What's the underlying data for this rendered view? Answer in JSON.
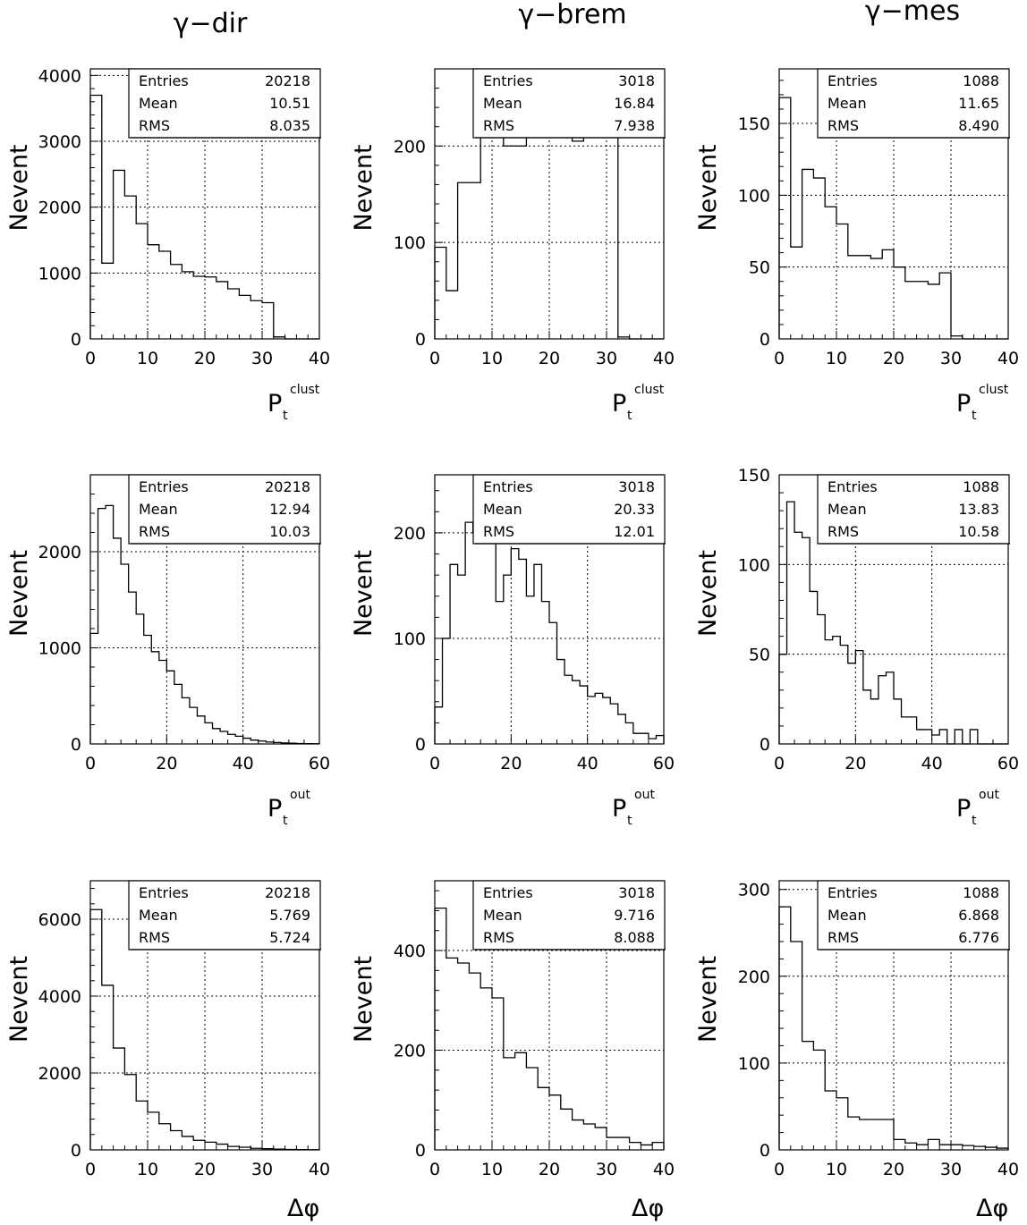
{
  "column_titles": [
    "γ−dir",
    "γ−brem",
    "γ−mes"
  ],
  "stat_labels": [
    "Entries",
    "Mean",
    "RMS"
  ],
  "chart_data": [
    {
      "type": "bar",
      "panel": "row1-col1",
      "title": "γ−dir",
      "ylabel": "Nevent",
      "xlabel_main": "P",
      "xlabel_sub": "t",
      "xlabel_sup": "clust",
      "xlim": [
        0,
        40
      ],
      "ylim": [
        0,
        4100
      ],
      "xticks": [
        0,
        10,
        20,
        30,
        40
      ],
      "yticks": [
        0,
        1000,
        2000,
        3000,
        4000
      ],
      "bin_width": 2,
      "values": [
        3700,
        1150,
        2560,
        2170,
        1750,
        1430,
        1330,
        1130,
        1020,
        950,
        940,
        870,
        760,
        660,
        580,
        550,
        30,
        0,
        0,
        0
      ],
      "stats": {
        "Entries": "20218",
        "Mean": "10.51",
        "RMS": "8.035"
      },
      "grid": true
    },
    {
      "type": "bar",
      "panel": "row1-col2",
      "title": "γ−brem",
      "ylabel": "Nevent",
      "xlabel_main": "P",
      "xlabel_sub": "t",
      "xlabel_sup": "clust",
      "xlim": [
        0,
        40
      ],
      "ylim": [
        0,
        280
      ],
      "xticks": [
        0,
        10,
        20,
        30,
        40
      ],
      "yticks": [
        0,
        100,
        200
      ],
      "bin_width": 2,
      "values": [
        95,
        50,
        162,
        162,
        250,
        240,
        200,
        200,
        248,
        232,
        215,
        245,
        205,
        235,
        255,
        255,
        2,
        0,
        0,
        0
      ],
      "stats": {
        "Entries": "3018",
        "Mean": "16.84",
        "RMS": "7.938"
      },
      "grid": true
    },
    {
      "type": "bar",
      "panel": "row1-col3",
      "title": "γ−mes",
      "ylabel": "Nevent",
      "xlabel_main": "P",
      "xlabel_sub": "t",
      "xlabel_sup": "clust",
      "xlim": [
        0,
        40
      ],
      "ylim": [
        0,
        188
      ],
      "xticks": [
        0,
        10,
        20,
        30,
        40
      ],
      "yticks": [
        0,
        50,
        100,
        150
      ],
      "bin_width": 2,
      "values": [
        168,
        64,
        118,
        112,
        92,
        80,
        58,
        58,
        56,
        62,
        50,
        40,
        40,
        38,
        46,
        2,
        0,
        0,
        0,
        0
      ],
      "stats": {
        "Entries": "1088",
        "Mean": "11.65",
        "RMS": "8.490"
      },
      "grid": true
    },
    {
      "type": "bar",
      "panel": "row2-col1",
      "title": "γ−dir",
      "ylabel": "Nevent",
      "xlabel_main": "P",
      "xlabel_sub": "t",
      "xlabel_sup": "out",
      "xlim": [
        0,
        60
      ],
      "ylim": [
        0,
        2800
      ],
      "xticks": [
        0,
        20,
        40,
        60
      ],
      "yticks": [
        0,
        1000,
        2000
      ],
      "bin_width": 2,
      "values": [
        1150,
        2450,
        2480,
        2140,
        1870,
        1580,
        1350,
        1130,
        960,
        870,
        760,
        620,
        480,
        380,
        290,
        220,
        160,
        130,
        100,
        80,
        60,
        40,
        30,
        20,
        15,
        10,
        8,
        5,
        3,
        2
      ],
      "stats": {
        "Entries": "20218",
        "Mean": "12.94",
        "RMS": "10.03"
      },
      "grid": true
    },
    {
      "type": "bar",
      "panel": "row2-col2",
      "title": "γ−brem",
      "ylabel": "Nevent",
      "xlabel_main": "P",
      "xlabel_sub": "t",
      "xlabel_sup": "out",
      "xlim": [
        0,
        60
      ],
      "ylim": [
        0,
        255
      ],
      "xticks": [
        0,
        20,
        40,
        60
      ],
      "yticks": [
        0,
        100,
        200
      ],
      "bin_width": 2,
      "values": [
        35,
        100,
        170,
        160,
        210,
        200,
        230,
        195,
        135,
        160,
        185,
        175,
        140,
        170,
        135,
        115,
        80,
        65,
        60,
        55,
        45,
        48,
        44,
        38,
        28,
        20,
        10,
        10,
        5,
        8
      ],
      "stats": {
        "Entries": "3018",
        "Mean": "20.33",
        "RMS": "12.01"
      },
      "grid": true
    },
    {
      "type": "bar",
      "panel": "row2-col3",
      "title": "γ−mes",
      "ylabel": "Nevent",
      "xlabel_main": "P",
      "xlabel_sub": "t",
      "xlabel_sup": "out",
      "xlim": [
        0,
        60
      ],
      "ylim": [
        0,
        150
      ],
      "xticks": [
        0,
        20,
        40,
        60
      ],
      "yticks": [
        0,
        50,
        100,
        150
      ],
      "bin_width": 2,
      "values": [
        50,
        135,
        118,
        115,
        85,
        72,
        58,
        60,
        55,
        45,
        52,
        30,
        25,
        38,
        40,
        25,
        15,
        15,
        8,
        8,
        5,
        8,
        0,
        8,
        0,
        8,
        0,
        0,
        0,
        0
      ],
      "stats": {
        "Entries": "1088",
        "Mean": "13.83",
        "RMS": "10.58"
      },
      "grid": true
    },
    {
      "type": "bar",
      "panel": "row3-col1",
      "title": "γ−dir",
      "ylabel": "Nevent",
      "xlabel_main": "Δφ",
      "xlabel_sub": "",
      "xlabel_sup": "",
      "xlim": [
        0,
        40
      ],
      "ylim": [
        0,
        7000
      ],
      "xticks": [
        0,
        10,
        20,
        30,
        40
      ],
      "yticks": [
        0,
        2000,
        4000,
        6000
      ],
      "bin_width": 2,
      "values": [
        6250,
        4280,
        2650,
        1960,
        1270,
        980,
        680,
        500,
        350,
        250,
        200,
        150,
        90,
        70,
        40,
        30,
        20,
        12,
        8,
        5
      ],
      "stats": {
        "Entries": "20218",
        "Mean": "5.769",
        "RMS": "5.724"
      },
      "grid": true
    },
    {
      "type": "bar",
      "panel": "row3-col2",
      "title": "γ−brem",
      "ylabel": "Nevent",
      "xlabel_main": "Δφ",
      "xlabel_sub": "",
      "xlabel_sup": "",
      "xlim": [
        0,
        40
      ],
      "ylim": [
        0,
        540
      ],
      "xticks": [
        0,
        10,
        20,
        30,
        40
      ],
      "yticks": [
        0,
        200,
        400
      ],
      "bin_width": 2,
      "values": [
        485,
        385,
        375,
        355,
        325,
        305,
        185,
        195,
        165,
        125,
        110,
        82,
        60,
        52,
        45,
        25,
        25,
        15,
        10,
        15
      ],
      "stats": {
        "Entries": "3018",
        "Mean": "9.716",
        "RMS": "8.088"
      },
      "grid": true
    },
    {
      "type": "bar",
      "panel": "row3-col3",
      "title": "γ−mes",
      "ylabel": "Nevent",
      "xlabel_main": "Δφ",
      "xlabel_sub": "",
      "xlabel_sup": "",
      "xlim": [
        0,
        40
      ],
      "ylim": [
        0,
        310
      ],
      "xticks": [
        0,
        10,
        20,
        30,
        40
      ],
      "yticks": [
        0,
        100,
        200,
        300
      ],
      "bin_width": 2,
      "values": [
        280,
        240,
        125,
        115,
        68,
        60,
        38,
        35,
        35,
        35,
        12,
        8,
        6,
        12,
        6,
        6,
        5,
        4,
        3,
        2
      ],
      "stats": {
        "Entries": "1088",
        "Mean": "6.868",
        "RMS": "6.776"
      },
      "grid": true
    }
  ]
}
